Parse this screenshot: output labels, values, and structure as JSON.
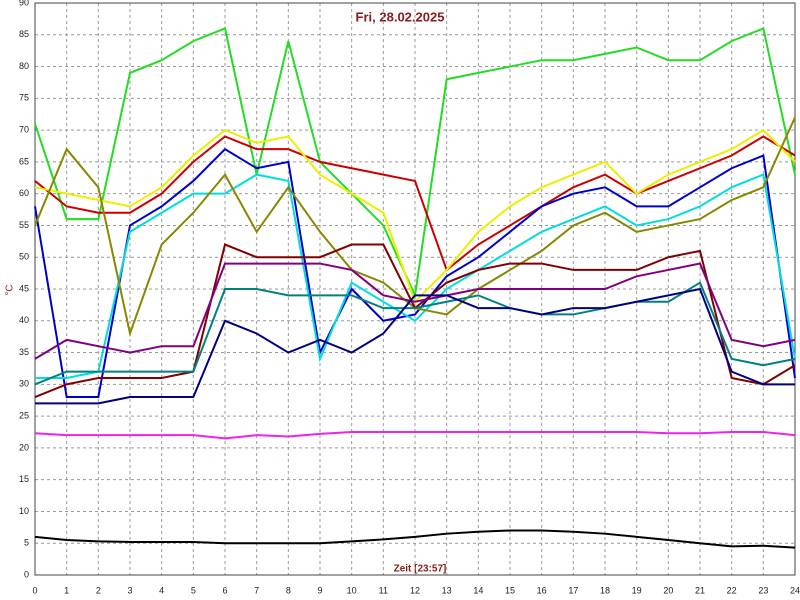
{
  "chart_data": {
    "type": "line",
    "title": "Fri, 28.02.2025",
    "x_label": "Zeit [23:57]",
    "y_label": "°C",
    "x": [
      0,
      1,
      2,
      3,
      4,
      5,
      6,
      7,
      8,
      9,
      10,
      11,
      12,
      13,
      14,
      15,
      16,
      17,
      18,
      19,
      20,
      21,
      22,
      23,
      24
    ],
    "xlim": [
      0,
      24
    ],
    "xticks": [
      0,
      1,
      2,
      3,
      4,
      5,
      6,
      7,
      8,
      9,
      10,
      11,
      12,
      13,
      14,
      15,
      16,
      17,
      18,
      19,
      20,
      21,
      22,
      23,
      24
    ],
    "ylim": [
      0,
      90
    ],
    "yticks": [
      0,
      5,
      10,
      15,
      20,
      25,
      30,
      35,
      40,
      45,
      50,
      55,
      60,
      65,
      70,
      75,
      80,
      85,
      90
    ],
    "grid": true,
    "series": [
      {
        "color": "#22dd22",
        "values": [
          71,
          56,
          56,
          79,
          81,
          84,
          86,
          63,
          84,
          65,
          60,
          55,
          44,
          78,
          79,
          80,
          81,
          81,
          82,
          83,
          81,
          81,
          84,
          86,
          63
        ]
      },
      {
        "color": "#cc0000",
        "values": [
          62,
          58,
          57,
          57,
          60,
          65,
          69,
          67,
          67,
          65,
          64,
          63,
          62,
          48,
          52,
          55,
          58,
          61,
          63,
          60,
          62,
          64,
          66,
          69,
          66
        ]
      },
      {
        "color": "#eeee00",
        "values": [
          61,
          60,
          59,
          58,
          61,
          66,
          70,
          68,
          69,
          63,
          60,
          57,
          43,
          48,
          54,
          58,
          61,
          63,
          65,
          60,
          63,
          65,
          67,
          70,
          65
        ]
      },
      {
        "color": "#0000cc",
        "values": [
          58,
          28,
          28,
          55,
          58,
          62,
          67,
          64,
          65,
          35,
          45,
          40,
          41,
          47,
          50,
          54,
          58,
          60,
          61,
          58,
          58,
          61,
          64,
          66,
          31
        ]
      },
      {
        "color": "#00dddd",
        "values": [
          31,
          31,
          32,
          54,
          57,
          60,
          60,
          63,
          62,
          34,
          46,
          43,
          40,
          45,
          48,
          51,
          54,
          56,
          58,
          55,
          56,
          58,
          61,
          63,
          34
        ]
      },
      {
        "color": "#888800",
        "values": [
          55,
          67,
          61,
          38,
          52,
          57,
          63,
          54,
          61,
          54,
          48,
          46,
          42,
          41,
          45,
          48,
          51,
          55,
          57,
          54,
          55,
          56,
          59,
          61,
          72
        ]
      },
      {
        "color": "#800000",
        "values": [
          28,
          30,
          31,
          31,
          31,
          32,
          52,
          50,
          50,
          50,
          52,
          52,
          42,
          46,
          48,
          49,
          49,
          48,
          48,
          48,
          50,
          51,
          31,
          30,
          33
        ]
      },
      {
        "color": "#800080",
        "values": [
          34,
          37,
          36,
          35,
          36,
          36,
          49,
          49,
          49,
          49,
          48,
          44,
          43,
          44,
          45,
          45,
          45,
          45,
          45,
          47,
          48,
          49,
          37,
          36,
          37
        ]
      },
      {
        "color": "#008080",
        "values": [
          30,
          32,
          32,
          32,
          32,
          32,
          45,
          45,
          44,
          44,
          44,
          42,
          42,
          43,
          44,
          42,
          41,
          41,
          42,
          43,
          43,
          46,
          34,
          33,
          34
        ]
      },
      {
        "color": "#000080",
        "values": [
          27,
          27,
          27,
          28,
          28,
          28,
          40,
          38,
          35,
          37,
          35,
          38,
          44,
          44,
          42,
          42,
          41,
          42,
          42,
          43,
          44,
          45,
          32,
          30,
          30
        ]
      },
      {
        "color": "#ee22ee",
        "values": [
          22.3,
          22,
          22,
          22,
          22,
          22,
          21.5,
          22,
          21.8,
          22.2,
          22.5,
          22.5,
          22.5,
          22.5,
          22.5,
          22.5,
          22.5,
          22.5,
          22.5,
          22.5,
          22.3,
          22.3,
          22.5,
          22.5,
          22
        ]
      },
      {
        "color": "#000000",
        "values": [
          6,
          5.5,
          5.3,
          5.2,
          5.2,
          5.2,
          5,
          5,
          5,
          5,
          5.3,
          5.6,
          6,
          6.5,
          6.8,
          7,
          7,
          6.8,
          6.5,
          6,
          5.5,
          5,
          4.5,
          4.6,
          4.3
        ]
      }
    ]
  }
}
